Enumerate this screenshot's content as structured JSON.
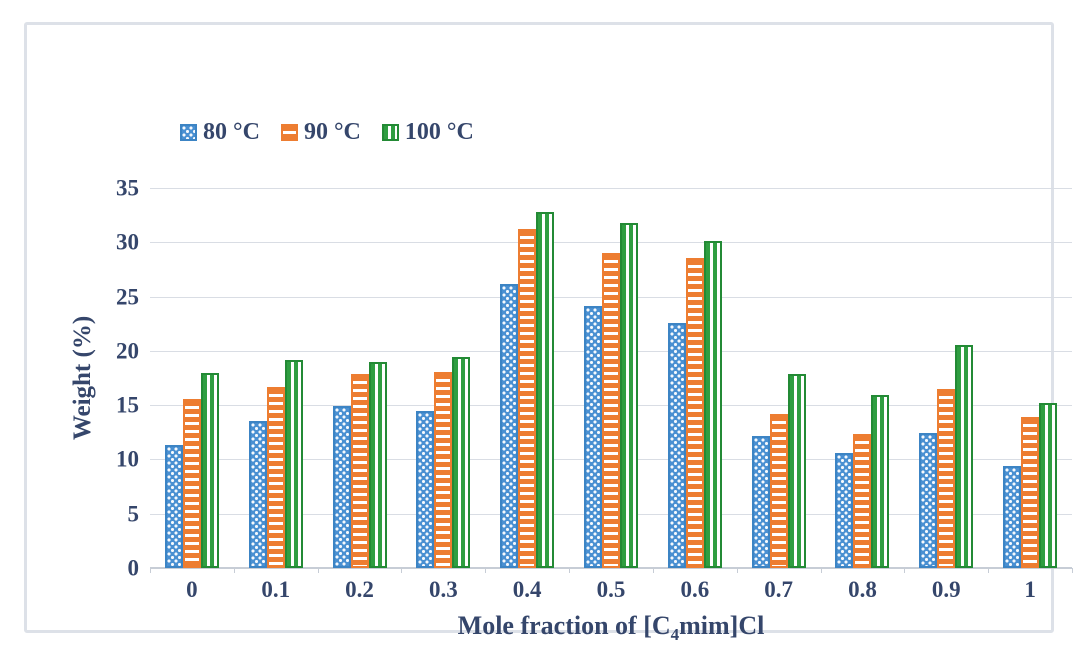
{
  "chart_data": {
    "type": "bar",
    "title": "",
    "ylabel": "Weight (%)",
    "xlabel_parts": {
      "pre": "Mole fraction of [C",
      "sub": "4",
      "post": "mim]Cl"
    },
    "categories": [
      "0",
      "0.1",
      "0.2",
      "0.3",
      "0.4",
      "0.5",
      "0.6",
      "0.7",
      "0.8",
      "0.9",
      "1"
    ],
    "y_ticks": [
      0,
      5,
      10,
      15,
      20,
      25,
      30,
      35
    ],
    "ylim": [
      0,
      35
    ],
    "grid": true,
    "legend_position": "top-left-inside",
    "series": [
      {
        "name": "80 °C",
        "color": "#4a90d2",
        "pattern": "dots",
        "values": [
          11.3,
          13.5,
          14.9,
          14.5,
          26.2,
          24.1,
          22.6,
          12.2,
          10.6,
          12.4,
          9.4
        ]
      },
      {
        "name": "90 °C",
        "color": "#ed7d31",
        "pattern": "h-stripes",
        "values": [
          15.6,
          16.7,
          17.9,
          18.1,
          31.2,
          29.0,
          28.6,
          14.2,
          12.3,
          16.5,
          13.9
        ]
      },
      {
        "name": "100 °C",
        "color": "#2f9e41",
        "pattern": "v-stripes",
        "values": [
          18.0,
          19.2,
          19.0,
          19.4,
          32.8,
          31.8,
          30.1,
          17.9,
          15.9,
          20.5,
          15.2
        ]
      }
    ],
    "colors": {
      "text": "#35466b",
      "gridline": "#d9dde4",
      "axis_line": "#c7cdd6",
      "frame_border": "#dde1e8",
      "background": "#ffffff"
    }
  }
}
